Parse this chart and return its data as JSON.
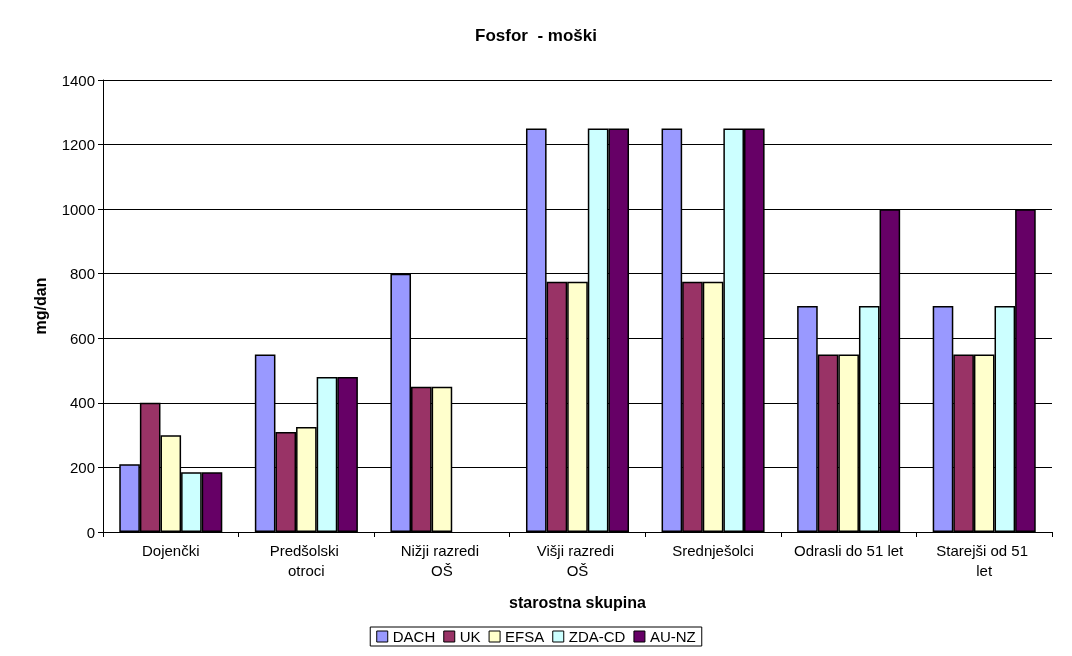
{
  "chart_data": {
    "type": "bar",
    "title": "Fosfor  - moški",
    "xlabel": "starostna skupina",
    "ylabel": "mg/dan",
    "categories": [
      "Dojenčki",
      "Predšolski otroci",
      "Nižji razredi OŠ",
      "Višji razredi OŠ",
      "Srednješolci",
      "Odrasli do 51 let",
      "Starejši od 51 let"
    ],
    "series": [
      {
        "name": "DACH",
        "color": "#9999ff",
        "values": [
          210,
          550,
          800,
          1250,
          1250,
          700,
          700
        ]
      },
      {
        "name": "UK",
        "color": "#993366",
        "values": [
          400,
          310,
          450,
          775,
          775,
          550,
          550
        ]
      },
      {
        "name": "EFSA",
        "color": "#ffffcc",
        "values": [
          300,
          325,
          450,
          775,
          775,
          550,
          550
        ]
      },
      {
        "name": "ZDA-CD",
        "color": "#ccffff",
        "values": [
          185,
          480,
          null,
          1250,
          1250,
          700,
          700
        ]
      },
      {
        "name": "AU-NZ",
        "color": "#660066",
        "values": [
          185,
          480,
          null,
          1250,
          1250,
          1000,
          1000
        ]
      }
    ],
    "ylim": [
      0,
      1400
    ],
    "yticks": [
      0,
      200,
      400,
      600,
      800,
      1000,
      1200,
      1400
    ],
    "grid": "y",
    "legend": "bottom"
  }
}
